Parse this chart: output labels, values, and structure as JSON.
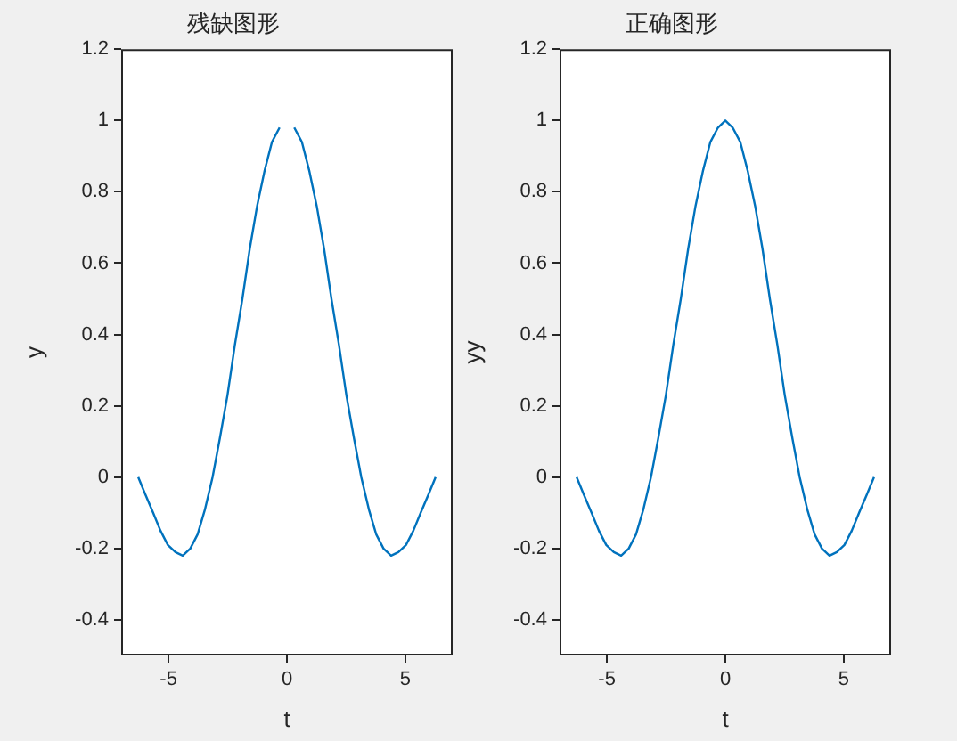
{
  "chart_data": [
    {
      "type": "line",
      "title": "残缺图形",
      "xlabel": "t",
      "ylabel": "y",
      "x": [
        -6.28,
        -5.97,
        -5.65,
        -5.34,
        -5.03,
        -4.71,
        -4.4,
        -4.08,
        -3.77,
        -3.46,
        -3.14,
        -2.83,
        -2.51,
        -2.2,
        -1.88,
        -1.57,
        -1.26,
        -0.94,
        -0.63,
        -0.31,
        0,
        0.31,
        0.63,
        0.94,
        1.26,
        1.57,
        1.88,
        2.2,
        2.51,
        2.83,
        3.14,
        3.46,
        3.77,
        4.08,
        4.4,
        4.71,
        5.03,
        5.34,
        5.65,
        5.97,
        6.28
      ],
      "values": [
        0,
        -0.05,
        -0.1,
        -0.15,
        -0.19,
        -0.21,
        -0.22,
        -0.2,
        -0.16,
        -0.09,
        0,
        0.11,
        0.23,
        0.37,
        0.5,
        0.64,
        0.76,
        0.86,
        0.94,
        0.98,
        null,
        0.98,
        0.94,
        0.86,
        0.76,
        0.64,
        0.5,
        0.37,
        0.23,
        0.11,
        0,
        -0.09,
        -0.16,
        -0.2,
        -0.22,
        -0.21,
        -0.19,
        -0.15,
        -0.1,
        -0.05,
        0
      ],
      "color": "#0072bd",
      "xlim": [
        -7,
        7
      ],
      "ylim": [
        -0.5,
        1.2
      ],
      "xticks": [
        -5,
        0,
        5
      ],
      "yticks": [
        -0.4,
        -0.2,
        0,
        0.2,
        0.4,
        0.6,
        0.8,
        1,
        1.2
      ],
      "grid": false,
      "legend": false,
      "marker": "none"
    },
    {
      "type": "line",
      "title": "正确图形",
      "xlabel": "t",
      "ylabel": "yy",
      "x": [
        -6.28,
        -5.97,
        -5.65,
        -5.34,
        -5.03,
        -4.71,
        -4.4,
        -4.08,
        -3.77,
        -3.46,
        -3.14,
        -2.83,
        -2.51,
        -2.2,
        -1.88,
        -1.57,
        -1.26,
        -0.94,
        -0.63,
        -0.31,
        0,
        0.31,
        0.63,
        0.94,
        1.26,
        1.57,
        1.88,
        2.2,
        2.51,
        2.83,
        3.14,
        3.46,
        3.77,
        4.08,
        4.4,
        4.71,
        5.03,
        5.34,
        5.65,
        5.97,
        6.28
      ],
      "values": [
        0,
        -0.05,
        -0.1,
        -0.15,
        -0.19,
        -0.21,
        -0.22,
        -0.2,
        -0.16,
        -0.09,
        0,
        0.11,
        0.23,
        0.37,
        0.5,
        0.64,
        0.76,
        0.86,
        0.94,
        0.98,
        1,
        0.98,
        0.94,
        0.86,
        0.76,
        0.64,
        0.5,
        0.37,
        0.23,
        0.11,
        0,
        -0.09,
        -0.16,
        -0.2,
        -0.22,
        -0.21,
        -0.19,
        -0.15,
        -0.1,
        -0.05,
        0
      ],
      "color": "#0072bd",
      "xlim": [
        -7,
        7
      ],
      "ylim": [
        -0.5,
        1.2
      ],
      "xticks": [
        -5,
        0,
        5
      ],
      "yticks": [
        -0.4,
        -0.2,
        0,
        0.2,
        0.4,
        0.6,
        0.8,
        1,
        1.2
      ],
      "grid": false,
      "legend": false,
      "marker": "none"
    }
  ]
}
